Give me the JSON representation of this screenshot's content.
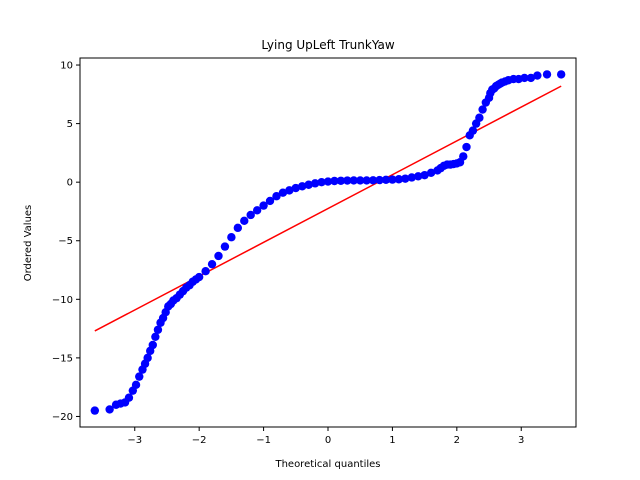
{
  "chart_data": {
    "type": "scatter",
    "title": "Lying UpLeft TrunkYaw",
    "xlabel": "Theoretical quantiles",
    "ylabel": "Ordered Values",
    "xlim": [
      -3.85,
      3.85
    ],
    "ylim": [
      -20.9,
      10.6
    ],
    "grid": false,
    "x_ticks": [
      -3,
      -2,
      -1,
      0,
      1,
      2,
      3
    ],
    "x_tick_labels": [
      "−3",
      "−2",
      "−1",
      "0",
      "1",
      "2",
      "3"
    ],
    "y_ticks": [
      -20,
      -15,
      -10,
      -5,
      0,
      5,
      10
    ],
    "y_tick_labels": [
      "−20",
      "−15",
      "−10",
      "−5",
      "0",
      "5",
      "10"
    ],
    "colors": {
      "points": "#0000ff",
      "fit_line": "#ff0000"
    },
    "series": [
      {
        "kind": "points",
        "x": [
          -3.62,
          -3.39,
          -3.29,
          -3.22,
          -3.15,
          -3.09,
          -3.03,
          -2.98,
          -2.93,
          -2.88,
          -2.84,
          -2.8,
          -2.76,
          -2.72,
          -2.68,
          -2.64,
          -2.6,
          -2.56,
          -2.52,
          -2.48,
          -2.44,
          -2.4,
          -2.35,
          -2.3,
          -2.25,
          -2.2,
          -2.15,
          -2.1,
          -2.05,
          -2.0,
          -1.9,
          -1.8,
          -1.7,
          -1.6,
          -1.5,
          -1.4,
          -1.3,
          -1.2,
          -1.1,
          -1.0,
          -0.9,
          -0.8,
          -0.7,
          -0.6,
          -0.5,
          -0.4,
          -0.3,
          -0.2,
          -0.1,
          0.0,
          0.1,
          0.2,
          0.3,
          0.4,
          0.5,
          0.6,
          0.7,
          0.8,
          0.9,
          1.0,
          1.1,
          1.2,
          1.3,
          1.4,
          1.5,
          1.6,
          1.7,
          1.75,
          1.8,
          1.85,
          1.9,
          1.95,
          2.0,
          2.05,
          2.1,
          2.15,
          2.2,
          2.25,
          2.3,
          2.35,
          2.4,
          2.45,
          2.5,
          2.52,
          2.55,
          2.58,
          2.61,
          2.64,
          2.67,
          2.7,
          2.75,
          2.8,
          2.88,
          2.96,
          3.05,
          3.15,
          3.25,
          3.4,
          3.62
        ],
        "y": [
          -19.5,
          -19.4,
          -19.0,
          -18.9,
          -18.8,
          -18.4,
          -17.8,
          -17.3,
          -16.6,
          -16.0,
          -15.5,
          -15.0,
          -14.4,
          -13.9,
          -13.2,
          -12.6,
          -12.0,
          -11.6,
          -11.1,
          -10.6,
          -10.4,
          -10.1,
          -9.9,
          -9.6,
          -9.3,
          -9.0,
          -8.8,
          -8.5,
          -8.3,
          -8.1,
          -7.6,
          -7.0,
          -6.3,
          -5.5,
          -4.7,
          -3.9,
          -3.3,
          -2.8,
          -2.4,
          -2.0,
          -1.6,
          -1.2,
          -0.9,
          -0.7,
          -0.5,
          -0.35,
          -0.22,
          -0.1,
          0.0,
          0.05,
          0.1,
          0.12,
          0.14,
          0.15,
          0.15,
          0.15,
          0.16,
          0.18,
          0.2,
          0.22,
          0.25,
          0.3,
          0.4,
          0.5,
          0.6,
          0.8,
          1.0,
          1.2,
          1.4,
          1.5,
          1.5,
          1.55,
          1.6,
          1.7,
          2.2,
          3.0,
          4.0,
          4.4,
          5.0,
          5.5,
          6.2,
          6.8,
          7.2,
          7.6,
          7.9,
          8.0,
          8.2,
          8.3,
          8.4,
          8.5,
          8.6,
          8.7,
          8.8,
          8.8,
          8.9,
          8.9,
          9.1,
          9.2,
          9.2
        ]
      },
      {
        "kind": "line",
        "x": [
          -3.62,
          3.62
        ],
        "y": [
          -12.7,
          8.2
        ]
      }
    ]
  }
}
